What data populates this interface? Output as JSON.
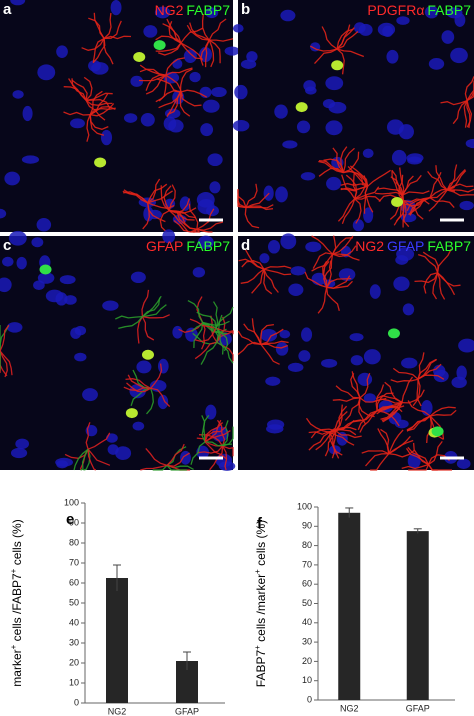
{
  "panels": [
    {
      "letter": "a",
      "labels": [
        {
          "text": "NG2",
          "color": "#ff2a2a"
        },
        {
          "text": "FABP7",
          "color": "#2aff2a"
        }
      ]
    },
    {
      "letter": "b",
      "labels": [
        {
          "text": "PDGFRα",
          "color": "#ff2a2a"
        },
        {
          "text": "FABP7",
          "color": "#2aff2a"
        }
      ]
    },
    {
      "letter": "c",
      "labels": [
        {
          "text": "GFAP",
          "color": "#ff2a2a"
        },
        {
          "text": "FABP7",
          "color": "#2aff2a"
        }
      ]
    },
    {
      "letter": "d",
      "labels": [
        {
          "text": "NG2",
          "color": "#ff2a2a"
        },
        {
          "text": "GFAP",
          "color": "#3a3aff"
        },
        {
          "text": "FABP7",
          "color": "#2aff2a"
        }
      ]
    }
  ],
  "chart_data": [
    {
      "type": "bar",
      "panel": "e",
      "ylabel": [
        {
          "text": "marker"
        },
        {
          "text": "+",
          "sup": true
        },
        {
          "text": " cells /FABP7"
        },
        {
          "text": "+",
          "sup": true
        },
        {
          "text": " cells (%)"
        }
      ],
      "categories": [
        "NG2",
        "GFAP"
      ],
      "values": [
        62.5,
        21
      ],
      "errors": [
        6.5,
        4.5
      ],
      "color": "#262626",
      "ylim": [
        0,
        100
      ],
      "yticks": [
        0,
        10,
        20,
        30,
        40,
        50,
        60,
        70,
        80,
        90,
        100
      ]
    },
    {
      "type": "bar",
      "panel": "f",
      "ylabel": [
        {
          "text": "FABP7"
        },
        {
          "text": "+",
          "sup": true
        },
        {
          "text": " cells /marker"
        },
        {
          "text": "+",
          "sup": true
        },
        {
          "text": " cells (%)"
        }
      ],
      "categories": [
        "NG2",
        "GFAP"
      ],
      "values": [
        97,
        87.5
      ],
      "errors": [
        2.5,
        1.2
      ],
      "color": "#262626",
      "ylim": [
        0,
        100
      ],
      "yticks": [
        0,
        10,
        20,
        30,
        40,
        50,
        60,
        70,
        80,
        90,
        100
      ]
    }
  ]
}
